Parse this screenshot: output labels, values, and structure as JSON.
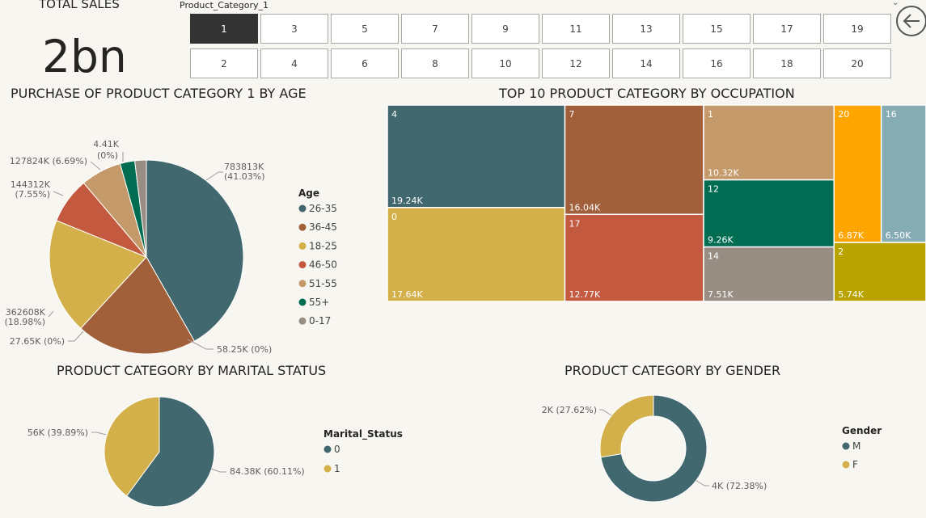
{
  "kpi": {
    "title": "TOTAL SALES",
    "value": "2bn"
  },
  "slicer": {
    "title": "Product_Category_1",
    "selected": "1",
    "row1": [
      "1",
      "3",
      "5",
      "7",
      "9",
      "11",
      "13",
      "15",
      "17",
      "19"
    ],
    "row2": [
      "2",
      "4",
      "6",
      "8",
      "10",
      "12",
      "14",
      "16",
      "18",
      "20"
    ]
  },
  "colors": {
    "c1": "#41676f",
    "c2": "#a15f3a",
    "c3": "#d3b04a",
    "c4": "#c35a40",
    "c5": "#c49a6a",
    "c6": "#006d52",
    "c7": "#988d82",
    "c8": "#ffa500",
    "c9": "#85acb2",
    "c10": "#b8a300"
  },
  "chart_data": [
    {
      "type": "pie",
      "title": "PURCHASE OF PRODUCT CATEGORY 1 BY AGE",
      "legend_title": "Age",
      "legend_position": "right",
      "slices": [
        {
          "name": "26-35",
          "value": 783813,
          "label": "783813K",
          "pct": "(41.03%)",
          "color": "#41676f"
        },
        {
          "name": "36-45",
          "value": 377000,
          "label": "",
          "pct": "",
          "color": "#a15f3a"
        },
        {
          "name": "18-25",
          "value": 362608,
          "label": "362608K",
          "pct": "(18.98%)",
          "color": "#d3b04a"
        },
        {
          "name": "46-50",
          "value": 144312,
          "label": "144312K",
          "pct": "(7.55%)",
          "color": "#c35a40"
        },
        {
          "name": "51-55",
          "value": 127824,
          "label": "127824K (6.69%)",
          "pct": "",
          "color": "#c49a6a"
        },
        {
          "name": "55+",
          "value": 46000,
          "label": "",
          "pct": "",
          "color": "#006d52"
        },
        {
          "name": "0-17",
          "value": 36000,
          "label": "",
          "pct": "",
          "color": "#988d82"
        }
      ],
      "extra_labels": [
        "58.25K (0%)",
        "27.65K (0%)",
        "4.41K",
        "(0%)"
      ]
    },
    {
      "type": "treemap",
      "title": "TOP 10 PRODUCT CATEGORY BY OCCUPATION",
      "items": [
        {
          "name": "4",
          "value": 19.24,
          "label": "19.24K",
          "color": "#41676f"
        },
        {
          "name": "0",
          "value": 17.64,
          "label": "17.64K",
          "color": "#d3b04a"
        },
        {
          "name": "7",
          "value": 16.04,
          "label": "16.04K",
          "color": "#a15f3a"
        },
        {
          "name": "17",
          "value": 12.77,
          "label": "12.77K",
          "color": "#c35a40"
        },
        {
          "name": "1",
          "value": 10.32,
          "label": "10.32K",
          "color": "#c49a6a"
        },
        {
          "name": "12",
          "value": 9.26,
          "label": "9.26K",
          "color": "#006d52"
        },
        {
          "name": "14",
          "value": 7.51,
          "label": "7.51K",
          "color": "#988d82"
        },
        {
          "name": "20",
          "value": 6.87,
          "label": "6.87K",
          "color": "#ffa500"
        },
        {
          "name": "16",
          "value": 6.5,
          "label": "6.50K",
          "color": "#85acb2"
        },
        {
          "name": "2",
          "value": 5.74,
          "label": "5.74K",
          "color": "#b8a300"
        }
      ]
    },
    {
      "type": "pie",
      "title": "PRODUCT CATEGORY BY MARITAL STATUS",
      "legend_title": "Marital_Status",
      "legend_position": "right",
      "slices": [
        {
          "name": "0",
          "value": 84.38,
          "label": "84.38K (60.11%)",
          "color": "#41676f"
        },
        {
          "name": "1",
          "value": 56,
          "label": "56K (39.89%)",
          "color": "#d3b04a"
        }
      ]
    },
    {
      "type": "donut",
      "title": "PRODUCT CATEGORY BY GENDER",
      "legend_title": "Gender",
      "legend_position": "right",
      "slices": [
        {
          "name": "M",
          "value": 72.38,
          "label": "4K (72.38%)",
          "color": "#41676f"
        },
        {
          "name": "F",
          "value": 27.62,
          "label": "2K (27.62%)",
          "color": "#d3b04a"
        }
      ]
    }
  ]
}
